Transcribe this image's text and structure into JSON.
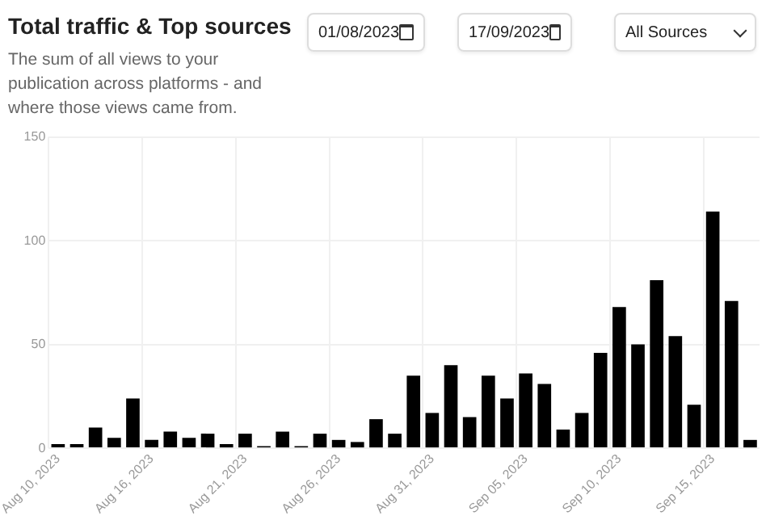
{
  "chart_data": {
    "type": "bar",
    "title": "Total traffic & Top sources",
    "subtitle": "The sum of all views to your publication across platforms - and where those views came from.",
    "annotations": [
      "01/08/2023",
      "17/09/2023",
      "All Sources"
    ],
    "categories": [
      "Aug 10, 2023",
      null,
      null,
      null,
      null,
      "Aug 16, 2023",
      null,
      null,
      null,
      null,
      "Aug 21, 2023",
      null,
      null,
      null,
      null,
      "Aug 26, 2023",
      null,
      null,
      null,
      null,
      "Aug 31, 2023",
      null,
      null,
      null,
      null,
      "Sep 05, 2023",
      null,
      null,
      null,
      null,
      "Sep 10, 2023",
      null,
      null,
      null,
      null,
      "Sep 15, 2023",
      null,
      null
    ],
    "values": [
      2,
      2,
      10,
      5,
      24,
      4,
      8,
      5,
      7,
      2,
      7,
      1,
      8,
      1,
      7,
      4,
      3,
      14,
      7,
      35,
      17,
      40,
      15,
      35,
      24,
      36,
      31,
      9,
      17,
      46,
      68,
      50,
      81,
      54,
      21,
      114,
      71,
      4
    ],
    "color": "#000000",
    "ylim": [
      0,
      150
    ],
    "yticks": [
      0,
      50,
      100,
      150
    ],
    "grid": true,
    "legend": false
  }
}
